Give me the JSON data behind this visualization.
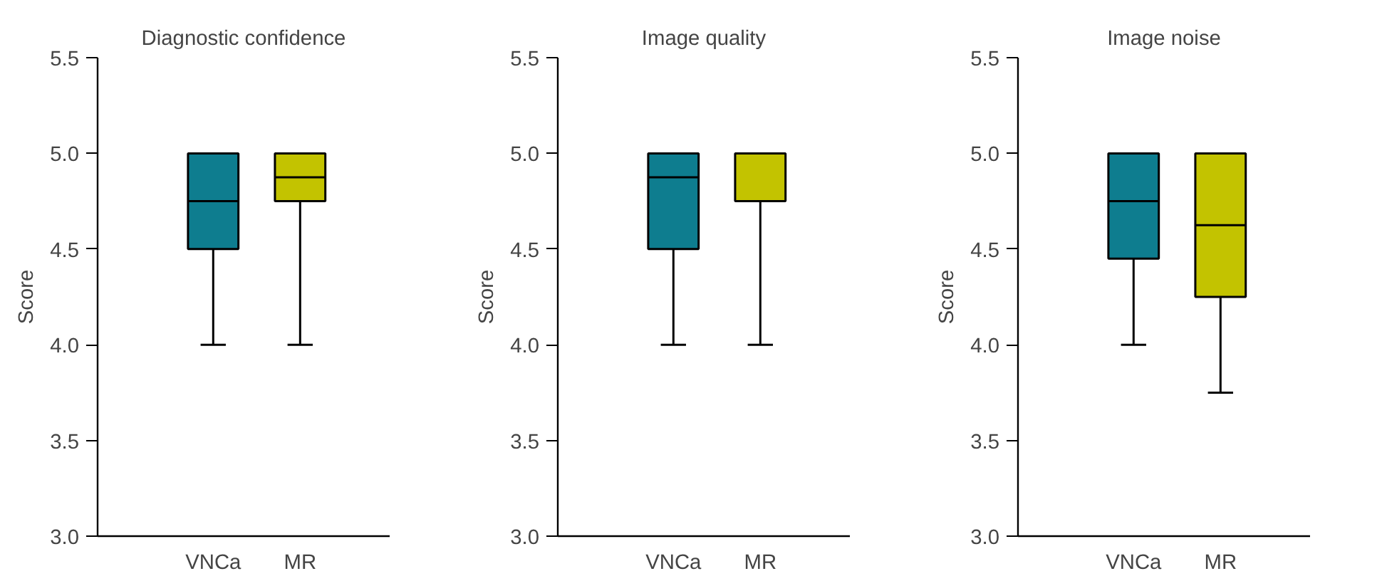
{
  "chart_data": [
    {
      "type": "box",
      "title": "Diagnostic confidence",
      "ylabel": "Score",
      "categories": [
        "VNCa",
        "MR"
      ],
      "colors": [
        "#0e7d8f",
        "#c3c300"
      ],
      "boxes": [
        {
          "low": 4.0,
          "q1": 4.5,
          "median": 4.75,
          "q3": 5.0,
          "high": 5.0
        },
        {
          "low": 4.0,
          "q1": 4.75,
          "median": 4.875,
          "q3": 5.0,
          "high": 5.0
        }
      ],
      "ylim": [
        3.0,
        5.5
      ],
      "yticks": [
        {
          "value": 3.0,
          "label": "3.0"
        },
        {
          "value": 3.5,
          "label": "3.5"
        },
        {
          "value": 4.0,
          "label": "4.0"
        },
        {
          "value": 4.5,
          "label": "4.5"
        },
        {
          "value": 5.0,
          "label": "5.0"
        },
        {
          "value": 5.5,
          "label": "5.5"
        }
      ],
      "grid": false
    },
    {
      "type": "box",
      "title": "Image quality",
      "ylabel": "Score",
      "categories": [
        "VNCa",
        "MR"
      ],
      "colors": [
        "#0e7d8f",
        "#c3c300"
      ],
      "boxes": [
        {
          "low": 4.0,
          "q1": 4.5,
          "median": 4.875,
          "q3": 5.0,
          "high": 5.0
        },
        {
          "low": 4.0,
          "q1": 4.75,
          "median": 5.0,
          "q3": 5.0,
          "high": 5.0
        }
      ],
      "ylim": [
        3.0,
        5.5
      ],
      "yticks": [
        {
          "value": 3.0,
          "label": "3.0"
        },
        {
          "value": 3.5,
          "label": "3.5"
        },
        {
          "value": 4.0,
          "label": "4.0"
        },
        {
          "value": 4.5,
          "label": "4.5"
        },
        {
          "value": 5.0,
          "label": "5.0"
        },
        {
          "value": 5.5,
          "label": "5.5"
        }
      ],
      "grid": false
    },
    {
      "type": "box",
      "title": "Image noise",
      "ylabel": "Score",
      "categories": [
        "VNCa",
        "MR"
      ],
      "colors": [
        "#0e7d8f",
        "#c3c300"
      ],
      "boxes": [
        {
          "low": 4.0,
          "q1": 4.45,
          "median": 4.75,
          "q3": 5.0,
          "high": 5.0
        },
        {
          "low": 3.75,
          "q1": 4.25,
          "median": 4.625,
          "q3": 5.0,
          "high": 5.0
        }
      ],
      "ylim": [
        3.0,
        5.5
      ],
      "yticks": [
        {
          "value": 3.0,
          "label": "3.0"
        },
        {
          "value": 3.5,
          "label": "3.5"
        },
        {
          "value": 4.0,
          "label": "4.0"
        },
        {
          "value": 4.5,
          "label": "4.5"
        },
        {
          "value": 5.0,
          "label": "5.0"
        },
        {
          "value": 5.5,
          "label": "5.5"
        }
      ],
      "grid": false
    }
  ]
}
